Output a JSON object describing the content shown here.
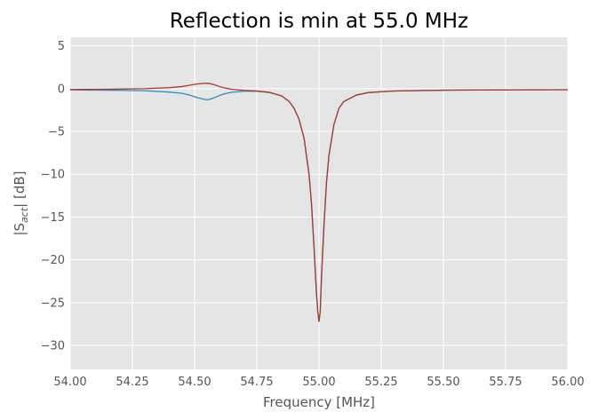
{
  "chart_data": {
    "type": "line",
    "title": "Reflection is min at 55.0 MHz",
    "xlabel": "Frequency [MHz]",
    "ylabel_main": "|S",
    "ylabel_sub": "act",
    "ylabel_tail": "| [dB]",
    "xlim": [
      54.0,
      56.0
    ],
    "ylim": [
      -32.8,
      6.0
    ],
    "grid": true,
    "x_ticks": [
      54.0,
      54.25,
      54.5,
      54.75,
      55.0,
      55.25,
      55.5,
      55.75,
      56.0
    ],
    "x_tick_labels": [
      "54.00",
      "54.25",
      "54.50",
      "54.75",
      "55.00",
      "55.25",
      "55.50",
      "55.75",
      "56.00"
    ],
    "y_ticks": [
      5,
      0,
      -5,
      -10,
      -15,
      -20,
      -25,
      -30
    ],
    "y_tick_labels": [
      "5",
      "0",
      "−5",
      "−10",
      "−15",
      "−20",
      "−25",
      "−30"
    ],
    "colors": {
      "background": "#e5e5e5",
      "grid": "#ffffff",
      "text": "#555555"
    },
    "series": [
      {
        "color": "#348abd",
        "x": [
          54.0,
          54.2,
          54.3,
          54.4,
          54.45,
          54.48,
          54.5,
          54.52,
          54.54,
          54.55,
          54.56,
          54.58,
          54.6,
          54.62,
          54.65,
          54.7,
          54.75,
          54.8,
          54.85,
          54.88,
          54.9,
          54.92,
          54.94,
          54.96,
          54.97,
          54.98,
          54.99,
          54.995,
          55.0,
          55.005,
          55.01,
          55.02,
          55.03,
          55.04,
          55.06,
          55.08,
          55.1,
          55.15,
          55.2,
          55.3,
          55.5,
          55.75,
          56.0
        ],
        "y": [
          -0.15,
          -0.2,
          -0.25,
          -0.4,
          -0.55,
          -0.75,
          -0.95,
          -1.12,
          -1.25,
          -1.3,
          -1.25,
          -1.05,
          -0.8,
          -0.6,
          -0.42,
          -0.3,
          -0.3,
          -0.45,
          -0.85,
          -1.5,
          -2.3,
          -3.6,
          -5.8,
          -10.0,
          -13.5,
          -18.5,
          -24.0,
          -26.0,
          -27.2,
          -26.0,
          -22.0,
          -16.0,
          -11.0,
          -7.8,
          -4.2,
          -2.3,
          -1.5,
          -0.75,
          -0.45,
          -0.28,
          -0.18,
          -0.14,
          -0.12
        ]
      },
      {
        "color": "#a63a32",
        "x": [
          54.0,
          54.2,
          54.3,
          54.4,
          54.45,
          54.48,
          54.5,
          54.52,
          54.54,
          54.55,
          54.56,
          54.58,
          54.6,
          54.62,
          54.65,
          54.7,
          54.75,
          54.8,
          54.85,
          54.88,
          54.9,
          54.92,
          54.94,
          54.96,
          54.97,
          54.98,
          54.99,
          54.995,
          55.0,
          55.005,
          55.01,
          55.02,
          55.03,
          55.04,
          55.06,
          55.08,
          55.1,
          55.15,
          55.2,
          55.3,
          55.5,
          55.75,
          56.0
        ],
        "y": [
          -0.1,
          -0.05,
          0.0,
          0.12,
          0.25,
          0.4,
          0.5,
          0.58,
          0.62,
          0.63,
          0.6,
          0.45,
          0.25,
          0.08,
          -0.08,
          -0.2,
          -0.27,
          -0.42,
          -0.85,
          -1.5,
          -2.3,
          -3.6,
          -5.8,
          -10.0,
          -13.5,
          -18.5,
          -24.0,
          -26.0,
          -27.2,
          -26.0,
          -22.0,
          -16.0,
          -11.0,
          -7.8,
          -4.2,
          -2.3,
          -1.5,
          -0.75,
          -0.45,
          -0.28,
          -0.18,
          -0.14,
          -0.12
        ]
      }
    ]
  }
}
